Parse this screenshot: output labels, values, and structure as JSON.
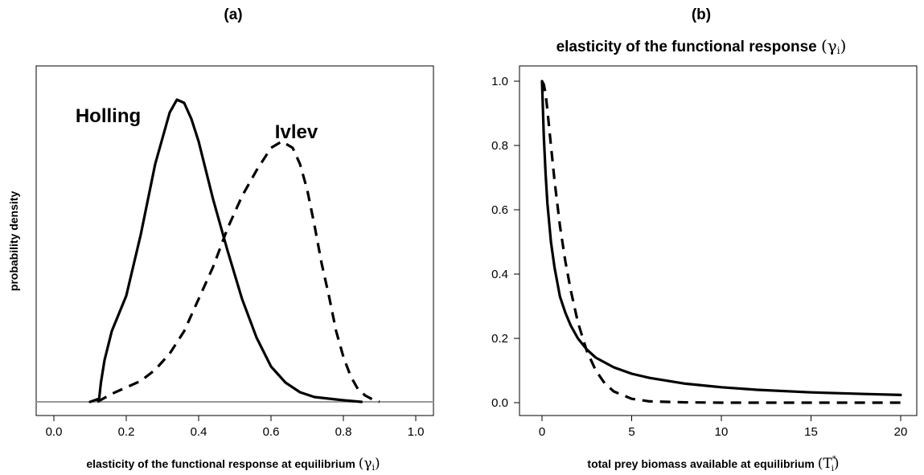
{
  "panels": {
    "a": {
      "label": "(a)"
    },
    "b": {
      "label": "(b)",
      "title_prefix": "elasticity of the functional response",
      "title_symbol": "(γ",
      "title_sub": "i",
      "title_close": ")"
    }
  },
  "chart_data": [
    {
      "type": "line",
      "panel": "(a)",
      "title": "",
      "xlabel": "elasticity of the functional response at equilibrium (γi)",
      "xlabel_text": "elasticity of the functional response at equilibrium",
      "xlabel_sym": "(γ",
      "xlabel_sub": "i",
      "xlabel_close": ")",
      "ylabel": "probability density",
      "xlim": [
        0,
        1
      ],
      "ylim": [
        0,
        1
      ],
      "xticks": [
        0.0,
        0.2,
        0.4,
        0.6,
        0.8,
        1.0
      ],
      "xtick_labels": [
        "0.0",
        "0.2",
        "0.4",
        "0.6",
        "0.8",
        "1.0"
      ],
      "yticks": [],
      "baseline": 0,
      "series": [
        {
          "name": "Holling",
          "style": "solid",
          "x": [
            0.1,
            0.125,
            0.13,
            0.14,
            0.16,
            0.2,
            0.24,
            0.28,
            0.32,
            0.34,
            0.36,
            0.38,
            0.4,
            0.44,
            0.48,
            0.52,
            0.56,
            0.6,
            0.64,
            0.68,
            0.72,
            0.76,
            0.8,
            0.85
          ],
          "y": [
            0.0,
            0.01,
            0.06,
            0.13,
            0.22,
            0.33,
            0.52,
            0.74,
            0.9,
            0.94,
            0.93,
            0.88,
            0.81,
            0.63,
            0.47,
            0.32,
            0.2,
            0.11,
            0.06,
            0.03,
            0.015,
            0.01,
            0.005,
            0.0
          ]
        },
        {
          "name": "Ivlev",
          "style": "dashed",
          "x": [
            0.12,
            0.16,
            0.2,
            0.24,
            0.28,
            0.32,
            0.36,
            0.4,
            0.44,
            0.48,
            0.52,
            0.56,
            0.6,
            0.63,
            0.66,
            0.68,
            0.7,
            0.72,
            0.74,
            0.76,
            0.78,
            0.8,
            0.82,
            0.84,
            0.86,
            0.88,
            0.9
          ],
          "y": [
            0.0,
            0.025,
            0.045,
            0.065,
            0.1,
            0.15,
            0.22,
            0.32,
            0.42,
            0.54,
            0.64,
            0.72,
            0.79,
            0.81,
            0.79,
            0.74,
            0.66,
            0.55,
            0.43,
            0.33,
            0.22,
            0.14,
            0.08,
            0.04,
            0.02,
            0.008,
            0.0
          ]
        }
      ],
      "annotations": [
        {
          "text": "Holling",
          "x": 0.15,
          "y": 0.87
        },
        {
          "text": "Ivlev",
          "x": 0.67,
          "y": 0.82
        }
      ]
    },
    {
      "type": "line",
      "panel": "(b)",
      "title": "elasticity of the functional response (γi)",
      "xlabel": "total prey biomass available at equilibrium (Ti*)",
      "xlabel_text": "total prey biomass available at equilibrium",
      "xlabel_sym": "(T",
      "xlabel_sup": "*",
      "xlabel_sub": "i",
      "xlabel_close": ")",
      "ylabel": "",
      "xlim": [
        0,
        20
      ],
      "ylim": [
        0,
        1
      ],
      "xticks": [
        0,
        5,
        10,
        15,
        20
      ],
      "xtick_labels": [
        "0",
        "5",
        "10",
        "15",
        "20"
      ],
      "yticks": [
        0.0,
        0.2,
        0.4,
        0.6,
        0.8,
        1.0
      ],
      "ytick_labels": [
        "0.0",
        "0.2",
        "0.4",
        "0.6",
        "0.8",
        "1.0"
      ],
      "series": [
        {
          "style": "solid",
          "x": [
            0.0,
            0.1,
            0.2,
            0.3,
            0.5,
            0.7,
            1.0,
            1.3,
            1.6,
            2.0,
            2.5,
            3.0,
            4.0,
            5.0,
            6.0,
            8.0,
            10.0,
            12.0,
            15.0,
            18.0,
            20.0
          ],
          "y": [
            1.0,
            0.83,
            0.71,
            0.62,
            0.5,
            0.42,
            0.33,
            0.28,
            0.24,
            0.2,
            0.165,
            0.14,
            0.11,
            0.09,
            0.077,
            0.059,
            0.048,
            0.04,
            0.032,
            0.027,
            0.024
          ]
        },
        {
          "style": "dashed",
          "x": [
            0.0,
            0.1,
            0.2,
            0.3,
            0.5,
            0.7,
            1.0,
            1.3,
            1.6,
            2.0,
            2.5,
            3.0,
            3.5,
            4.0,
            5.0,
            6.0,
            8.0,
            10.0,
            12.0,
            15.0,
            18.0,
            20.0
          ],
          "y": [
            1.0,
            0.99,
            0.96,
            0.91,
            0.8,
            0.69,
            0.55,
            0.44,
            0.35,
            0.25,
            0.16,
            0.1,
            0.06,
            0.035,
            0.012,
            0.004,
            0.001,
            0.0,
            0.0,
            0.0,
            0.0,
            0.0
          ]
        }
      ]
    }
  ]
}
